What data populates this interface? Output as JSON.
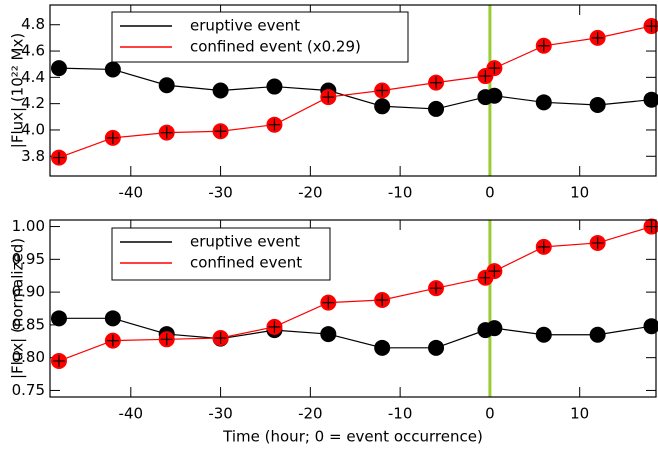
{
  "chart_data": [
    {
      "type": "line",
      "y_label": "|Flux| (10²² Mx)",
      "x": [
        -48,
        -42,
        -36,
        -30,
        -24,
        -18,
        -12,
        -6,
        -0.5,
        0.5,
        6,
        12,
        18
      ],
      "series": [
        {
          "name": "eruptive event",
          "color": "#000000",
          "values": [
            4.47,
            4.46,
            4.34,
            4.3,
            4.33,
            4.3,
            4.18,
            4.16,
            4.25,
            4.26,
            4.21,
            4.19,
            4.23
          ]
        },
        {
          "name": "confined event (x0.29)",
          "color": "#ff0000",
          "values": [
            3.79,
            3.94,
            3.98,
            3.99,
            4.04,
            4.25,
            4.3,
            4.36,
            4.41,
            4.47,
            4.64,
            4.7,
            4.79
          ]
        }
      ],
      "xlim": [
        -49,
        18.5
      ],
      "xticks": [
        -40,
        -30,
        -20,
        -10,
        0,
        10
      ],
      "ylim": [
        3.65,
        4.95
      ],
      "yticks": [
        3.8,
        {
          "value": 4.0,
          "label": "4.0"
        },
        4.2,
        4.4,
        4.6,
        4.8
      ],
      "vline": 0,
      "vline_color": "#99cc33"
    },
    {
      "type": "line",
      "y_label": "|Flux| (normalized)",
      "x_label": "Time (hour; 0 = event occurrence)",
      "x": [
        -48,
        -42,
        -36,
        -30,
        -24,
        -18,
        -12,
        -6,
        -0.5,
        0.5,
        6,
        12,
        18
      ],
      "series": [
        {
          "name": "eruptive event",
          "color": "#000000",
          "values": [
            0.86,
            0.86,
            0.836,
            0.829,
            0.842,
            0.836,
            0.815,
            0.815,
            0.842,
            0.845,
            0.835,
            0.835,
            0.848
          ]
        },
        {
          "name": "confined event",
          "color": "#ff0000",
          "values": [
            0.795,
            0.826,
            0.828,
            0.83,
            0.847,
            0.884,
            0.888,
            0.906,
            0.922,
            0.932,
            0.969,
            0.975,
            1.0
          ]
        }
      ],
      "xlim": [
        -49,
        18.5
      ],
      "xticks": [
        -40,
        -30,
        -20,
        -10,
        0,
        10
      ],
      "ylim": [
        0.74,
        1.01
      ],
      "yticks": [
        0.75,
        {
          "value": 0.8,
          "label": "0.80"
        },
        0.85,
        {
          "value": 0.9,
          "label": "0.90"
        },
        0.95,
        {
          "value": 1,
          "label": "1.00"
        }
      ],
      "vline": 0,
      "vline_color": "#99cc33"
    }
  ]
}
